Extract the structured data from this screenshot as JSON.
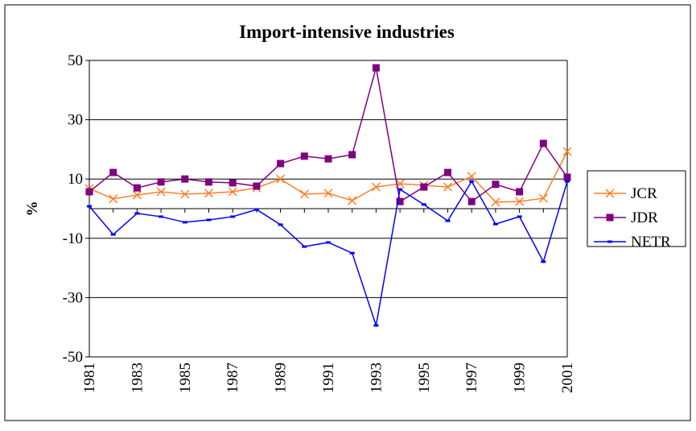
{
  "chart_data": {
    "type": "line",
    "title": "Import-intensive industries",
    "y_label": "%",
    "categories": [
      "1981",
      null,
      "1983",
      null,
      "1985",
      null,
      "1987",
      null,
      "1989",
      null,
      "1991",
      null,
      "1993",
      null,
      "1995",
      null,
      "1997",
      null,
      "1999",
      null,
      "2001"
    ],
    "series": [
      {
        "name": "JCR",
        "color": "#ff7f27",
        "marker": "x",
        "values": [
          6.8,
          3.3,
          4.6,
          5.7,
          4.9,
          5.2,
          5.7,
          7,
          10,
          4.9,
          5.2,
          2.7,
          7.3,
          8.4,
          7.9,
          7.3,
          10.9,
          2.2,
          2.4,
          3.5,
          19.3
        ]
      },
      {
        "name": "JDR",
        "color": "#800080",
        "marker": "square",
        "values": [
          5.7,
          12.2,
          7,
          9,
          10,
          9,
          8.7,
          7.6,
          15.2,
          17.7,
          16.8,
          18.2,
          47.5,
          2.4,
          7.3,
          12.2,
          2.4,
          8.2,
          5.7,
          22,
          10.6
        ]
      },
      {
        "name": "NETR",
        "color": "#0000ff",
        "marker": "dash",
        "values": [
          0.8,
          -8.7,
          -1.6,
          -2.7,
          -4.6,
          -3.8,
          -2.7,
          -0.3,
          -5.4,
          -12.8,
          -11.4,
          -15,
          -39.4,
          6.5,
          1.4,
          -4.1,
          9.2,
          -5.2,
          -2.7,
          -17.9,
          9.2
        ]
      }
    ],
    "ylim": [
      -50,
      50
    ],
    "yticks": [
      -50,
      -30,
      -10,
      10,
      30,
      50
    ],
    "grid": true,
    "legend": "right"
  }
}
